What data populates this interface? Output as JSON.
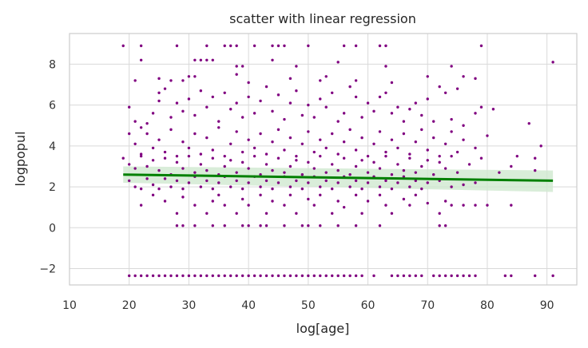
{
  "chart_data": {
    "type": "scatter",
    "title": "scatter with linear regression",
    "xlabel": "log[age]",
    "ylabel": "logpopul",
    "xlim": [
      10,
      95
    ],
    "ylim": [
      -2.8,
      9.5
    ],
    "xticks": [
      10,
      20,
      30,
      40,
      50,
      60,
      70,
      80,
      90
    ],
    "yticks": [
      -2,
      0,
      2,
      4,
      6,
      8
    ],
    "grid": true,
    "legend": "none",
    "point_color": "#800080",
    "line_color": "#008000",
    "band_color": "#cfe8cf",
    "regression": {
      "x": [
        19,
        91
      ],
      "y": [
        2.6,
        2.3
      ],
      "ci_lower": [
        2.2,
        1.75
      ],
      "ci_upper": [
        3.0,
        2.8
      ]
    },
    "points": [
      [
        19,
        8.9
      ],
      [
        22,
        8.9
      ],
      [
        28,
        8.9
      ],
      [
        33,
        8.9
      ],
      [
        36,
        8.9
      ],
      [
        37,
        8.9
      ],
      [
        38,
        8.9
      ],
      [
        41,
        8.9
      ],
      [
        44,
        8.9
      ],
      [
        45,
        8.9
      ],
      [
        46,
        8.9
      ],
      [
        50,
        8.9
      ],
      [
        56,
        8.9
      ],
      [
        58,
        8.9
      ],
      [
        62,
        8.9
      ],
      [
        63,
        8.9
      ],
      [
        79,
        8.9
      ],
      [
        22,
        8.2
      ],
      [
        31,
        8.2
      ],
      [
        32,
        8.2
      ],
      [
        33,
        8.2
      ],
      [
        34,
        8.2
      ],
      [
        38,
        7.9
      ],
      [
        39,
        7.9
      ],
      [
        44,
        8.2
      ],
      [
        48,
        7.9
      ],
      [
        55,
        8.1
      ],
      [
        63,
        7.9
      ],
      [
        74,
        7.9
      ],
      [
        91,
        8.1
      ],
      [
        21,
        7.2
      ],
      [
        25,
        7.3
      ],
      [
        27,
        7.2
      ],
      [
        29,
        7.2
      ],
      [
        30,
        7.4
      ],
      [
        31,
        7.4
      ],
      [
        38,
        7.5
      ],
      [
        40,
        7.1
      ],
      [
        47,
        7.3
      ],
      [
        52,
        7.2
      ],
      [
        53,
        7.4
      ],
      [
        58,
        7.2
      ],
      [
        64,
        7.1
      ],
      [
        70,
        7.4
      ],
      [
        76,
        7.4
      ],
      [
        78,
        7.3
      ],
      [
        20,
        5.9
      ],
      [
        21,
        5.2
      ],
      [
        22,
        4.9
      ],
      [
        23,
        5.1
      ],
      [
        24,
        5.6
      ],
      [
        25,
        6.6
      ],
      [
        25,
        6.2
      ],
      [
        26,
        6.8
      ],
      [
        27,
        5.4
      ],
      [
        28,
        6.1
      ],
      [
        29,
        5.7
      ],
      [
        30,
        6.3
      ],
      [
        31,
        5.5
      ],
      [
        32,
        6.7
      ],
      [
        33,
        5.9
      ],
      [
        34,
        6.4
      ],
      [
        35,
        5.2
      ],
      [
        36,
        6.6
      ],
      [
        37,
        5.8
      ],
      [
        38,
        6.1
      ],
      [
        39,
        5.4
      ],
      [
        40,
        6.4
      ],
      [
        41,
        5.6
      ],
      [
        42,
        6.2
      ],
      [
        43,
        6.9
      ],
      [
        44,
        5.7
      ],
      [
        45,
        6.5
      ],
      [
        46,
        5.3
      ],
      [
        47,
        6.1
      ],
      [
        48,
        6.7
      ],
      [
        49,
        5.5
      ],
      [
        50,
        6.0
      ],
      [
        51,
        5.4
      ],
      [
        52,
        6.3
      ],
      [
        53,
        5.9
      ],
      [
        54,
        6.6
      ],
      [
        55,
        5.2
      ],
      [
        56,
        5.6
      ],
      [
        57,
        6.9
      ],
      [
        58,
        6.4
      ],
      [
        59,
        5.4
      ],
      [
        60,
        6.1
      ],
      [
        61,
        5.7
      ],
      [
        62,
        6.4
      ],
      [
        63,
        6.6
      ],
      [
        64,
        5.6
      ],
      [
        65,
        5.9
      ],
      [
        66,
        5.2
      ],
      [
        67,
        5.8
      ],
      [
        68,
        6.1
      ],
      [
        69,
        5.5
      ],
      [
        70,
        6.3
      ],
      [
        71,
        5.2
      ],
      [
        72,
        6.9
      ],
      [
        73,
        6.6
      ],
      [
        74,
        5.3
      ],
      [
        75,
        6.8
      ],
      [
        76,
        5.0
      ],
      [
        78,
        5.6
      ],
      [
        79,
        5.9
      ],
      [
        81,
        5.8
      ],
      [
        87,
        5.1
      ],
      [
        20,
        4.6
      ],
      [
        21,
        4.1
      ],
      [
        22,
        3.6
      ],
      [
        23,
        4.6
      ],
      [
        24,
        3.9
      ],
      [
        25,
        4.3
      ],
      [
        26,
        3.7
      ],
      [
        27,
        4.8
      ],
      [
        28,
        3.5
      ],
      [
        29,
        4.2
      ],
      [
        30,
        3.9
      ],
      [
        31,
        4.6
      ],
      [
        32,
        3.6
      ],
      [
        33,
        4.4
      ],
      [
        34,
        3.8
      ],
      [
        35,
        4.9
      ],
      [
        36,
        3.5
      ],
      [
        37,
        4.1
      ],
      [
        38,
        4.7
      ],
      [
        39,
        3.7
      ],
      [
        40,
        4.3
      ],
      [
        41,
        3.9
      ],
      [
        42,
        4.6
      ],
      [
        43,
        3.6
      ],
      [
        44,
        4.2
      ],
      [
        45,
        4.8
      ],
      [
        46,
        3.8
      ],
      [
        47,
        4.4
      ],
      [
        48,
        3.5
      ],
      [
        49,
        4.1
      ],
      [
        50,
        4.7
      ],
      [
        51,
        3.7
      ],
      [
        52,
        4.3
      ],
      [
        53,
        3.9
      ],
      [
        54,
        4.6
      ],
      [
        55,
        3.6
      ],
      [
        56,
        4.2
      ],
      [
        57,
        4.8
      ],
      [
        58,
        3.8
      ],
      [
        59,
        4.4
      ],
      [
        60,
        3.5
      ],
      [
        61,
        4.1
      ],
      [
        62,
        4.7
      ],
      [
        63,
        3.7
      ],
      [
        64,
        4.3
      ],
      [
        65,
        3.9
      ],
      [
        66,
        4.6
      ],
      [
        67,
        3.6
      ],
      [
        68,
        4.2
      ],
      [
        69,
        4.8
      ],
      [
        70,
        3.8
      ],
      [
        71,
        4.4
      ],
      [
        72,
        3.5
      ],
      [
        73,
        4.1
      ],
      [
        74,
        4.7
      ],
      [
        75,
        3.7
      ],
      [
        76,
        4.3
      ],
      [
        78,
        3.9
      ],
      [
        80,
        4.5
      ],
      [
        85,
        3.5
      ],
      [
        88,
        3.4
      ],
      [
        89,
        4.0
      ],
      [
        19,
        3.4
      ],
      [
        20,
        3.1
      ],
      [
        21,
        2.9
      ],
      [
        22,
        3.5
      ],
      [
        23,
        3.0
      ],
      [
        24,
        3.3
      ],
      [
        25,
        2.8
      ],
      [
        26,
        3.4
      ],
      [
        27,
        2.6
      ],
      [
        28,
        3.2
      ],
      [
        29,
        2.9
      ],
      [
        30,
        3.5
      ],
      [
        31,
        2.7
      ],
      [
        32,
        3.1
      ],
      [
        33,
        2.8
      ],
      [
        34,
        3.4
      ],
      [
        35,
        2.6
      ],
      [
        36,
        3.0
      ],
      [
        37,
        3.3
      ],
      [
        38,
        2.7
      ],
      [
        39,
        3.2
      ],
      [
        40,
        2.9
      ],
      [
        41,
        3.5
      ],
      [
        42,
        2.6
      ],
      [
        43,
        3.1
      ],
      [
        44,
        2.8
      ],
      [
        45,
        3.4
      ],
      [
        46,
        2.7
      ],
      [
        47,
        3.0
      ],
      [
        48,
        3.3
      ],
      [
        49,
        2.6
      ],
      [
        50,
        3.2
      ],
      [
        51,
        2.9
      ],
      [
        52,
        3.5
      ],
      [
        53,
        2.7
      ],
      [
        54,
        3.1
      ],
      [
        55,
        2.8
      ],
      [
        56,
        3.4
      ],
      [
        57,
        2.6
      ],
      [
        58,
        3.0
      ],
      [
        59,
        3.3
      ],
      [
        60,
        2.7
      ],
      [
        61,
        3.2
      ],
      [
        62,
        2.9
      ],
      [
        63,
        3.5
      ],
      [
        64,
        2.6
      ],
      [
        65,
        3.1
      ],
      [
        66,
        2.8
      ],
      [
        67,
        3.4
      ],
      [
        68,
        2.7
      ],
      [
        69,
        3.0
      ],
      [
        70,
        3.3
      ],
      [
        71,
        2.6
      ],
      [
        72,
        3.2
      ],
      [
        73,
        2.9
      ],
      [
        74,
        3.5
      ],
      [
        75,
        2.7
      ],
      [
        77,
        3.1
      ],
      [
        79,
        3.4
      ],
      [
        82,
        2.7
      ],
      [
        84,
        3.0
      ],
      [
        88,
        2.8
      ],
      [
        20,
        2.3
      ],
      [
        21,
        2.0
      ],
      [
        22,
        1.9
      ],
      [
        23,
        2.4
      ],
      [
        24,
        2.1
      ],
      [
        25,
        1.9
      ],
      [
        26,
        2.4
      ],
      [
        27,
        2.0
      ],
      [
        28,
        2.3
      ],
      [
        29,
        1.9
      ],
      [
        30,
        2.2
      ],
      [
        31,
        2.5
      ],
      [
        32,
        2.0
      ],
      [
        33,
        2.3
      ],
      [
        34,
        1.9
      ],
      [
        35,
        2.2
      ],
      [
        36,
        2.5
      ],
      [
        37,
        2.0
      ],
      [
        38,
        2.3
      ],
      [
        39,
        1.9
      ],
      [
        40,
        2.2
      ],
      [
        41,
        2.5
      ],
      [
        42,
        2.0
      ],
      [
        43,
        2.3
      ],
      [
        44,
        1.9
      ],
      [
        45,
        2.2
      ],
      [
        46,
        2.5
      ],
      [
        47,
        2.0
      ],
      [
        48,
        2.3
      ],
      [
        49,
        1.9
      ],
      [
        50,
        2.2
      ],
      [
        51,
        2.5
      ],
      [
        52,
        2.0
      ],
      [
        53,
        2.3
      ],
      [
        54,
        1.9
      ],
      [
        55,
        2.2
      ],
      [
        56,
        2.5
      ],
      [
        57,
        2.0
      ],
      [
        58,
        2.3
      ],
      [
        59,
        1.9
      ],
      [
        60,
        2.2
      ],
      [
        61,
        2.5
      ],
      [
        62,
        2.0
      ],
      [
        63,
        2.3
      ],
      [
        64,
        1.9
      ],
      [
        65,
        2.2
      ],
      [
        66,
        2.5
      ],
      [
        67,
        2.0
      ],
      [
        68,
        2.3
      ],
      [
        69,
        1.9
      ],
      [
        70,
        2.2
      ],
      [
        72,
        2.3
      ],
      [
        74,
        2.0
      ],
      [
        76,
        2.1
      ],
      [
        78,
        2.2
      ],
      [
        22,
        1.1
      ],
      [
        24,
        1.6
      ],
      [
        26,
        1.3
      ],
      [
        28,
        0.7
      ],
      [
        29,
        1.5
      ],
      [
        31,
        1.1
      ],
      [
        33,
        0.7
      ],
      [
        34,
        1.3
      ],
      [
        35,
        1.6
      ],
      [
        36,
        1.1
      ],
      [
        38,
        0.7
      ],
      [
        39,
        1.4
      ],
      [
        40,
        1.1
      ],
      [
        42,
        1.6
      ],
      [
        43,
        0.7
      ],
      [
        44,
        1.3
      ],
      [
        46,
        1.1
      ],
      [
        47,
        1.6
      ],
      [
        48,
        0.7
      ],
      [
        50,
        1.4
      ],
      [
        51,
        1.1
      ],
      [
        52,
        1.6
      ],
      [
        54,
        0.7
      ],
      [
        55,
        1.3
      ],
      [
        56,
        1.0
      ],
      [
        58,
        1.6
      ],
      [
        59,
        0.7
      ],
      [
        60,
        1.3
      ],
      [
        62,
        1.6
      ],
      [
        63,
        1.1
      ],
      [
        64,
        0.7
      ],
      [
        66,
        1.4
      ],
      [
        67,
        1.1
      ],
      [
        68,
        1.6
      ],
      [
        70,
        1.2
      ],
      [
        72,
        0.7
      ],
      [
        73,
        1.3
      ],
      [
        74,
        1.1
      ],
      [
        76,
        1.1
      ],
      [
        78,
        1.1
      ],
      [
        80,
        1.1
      ],
      [
        84,
        1.1
      ],
      [
        28,
        0.1
      ],
      [
        29,
        0.1
      ],
      [
        31,
        0.1
      ],
      [
        34,
        0.1
      ],
      [
        36,
        0.1
      ],
      [
        39,
        0.1
      ],
      [
        40,
        0.1
      ],
      [
        42,
        0.1
      ],
      [
        43,
        0.1
      ],
      [
        46,
        0.1
      ],
      [
        49,
        0.1
      ],
      [
        50,
        0.1
      ],
      [
        52,
        0.1
      ],
      [
        55,
        0.1
      ],
      [
        58,
        0.1
      ],
      [
        62,
        0.1
      ],
      [
        72,
        0.1
      ],
      [
        73,
        0.1
      ],
      [
        20,
        -2.35
      ],
      [
        21,
        -2.35
      ],
      [
        22,
        -2.35
      ],
      [
        23,
        -2.35
      ],
      [
        24,
        -2.35
      ],
      [
        25,
        -2.35
      ],
      [
        26,
        -2.35
      ],
      [
        27,
        -2.35
      ],
      [
        28,
        -2.35
      ],
      [
        29,
        -2.35
      ],
      [
        30,
        -2.35
      ],
      [
        31,
        -2.35
      ],
      [
        32,
        -2.35
      ],
      [
        33,
        -2.35
      ],
      [
        34,
        -2.35
      ],
      [
        35,
        -2.35
      ],
      [
        36,
        -2.35
      ],
      [
        37,
        -2.35
      ],
      [
        38,
        -2.35
      ],
      [
        39,
        -2.35
      ],
      [
        40,
        -2.35
      ],
      [
        41,
        -2.35
      ],
      [
        42,
        -2.35
      ],
      [
        43,
        -2.35
      ],
      [
        44,
        -2.35
      ],
      [
        45,
        -2.35
      ],
      [
        46,
        -2.35
      ],
      [
        47,
        -2.35
      ],
      [
        48,
        -2.35
      ],
      [
        49,
        -2.35
      ],
      [
        50,
        -2.35
      ],
      [
        51,
        -2.35
      ],
      [
        52,
        -2.35
      ],
      [
        53,
        -2.35
      ],
      [
        54,
        -2.35
      ],
      [
        55,
        -2.35
      ],
      [
        56,
        -2.35
      ],
      [
        57,
        -2.35
      ],
      [
        58,
        -2.35
      ],
      [
        59,
        -2.35
      ],
      [
        61,
        -2.35
      ],
      [
        64,
        -2.35
      ],
      [
        65,
        -2.35
      ],
      [
        66,
        -2.35
      ],
      [
        67,
        -2.35
      ],
      [
        68,
        -2.35
      ],
      [
        69,
        -2.35
      ],
      [
        71,
        -2.35
      ],
      [
        72,
        -2.35
      ],
      [
        73,
        -2.35
      ],
      [
        74,
        -2.35
      ],
      [
        75,
        -2.35
      ],
      [
        76,
        -2.35
      ],
      [
        77,
        -2.35
      ],
      [
        78,
        -2.35
      ],
      [
        83,
        -2.35
      ],
      [
        84,
        -2.35
      ],
      [
        88,
        -2.35
      ],
      [
        91,
        -2.35
      ]
    ]
  }
}
